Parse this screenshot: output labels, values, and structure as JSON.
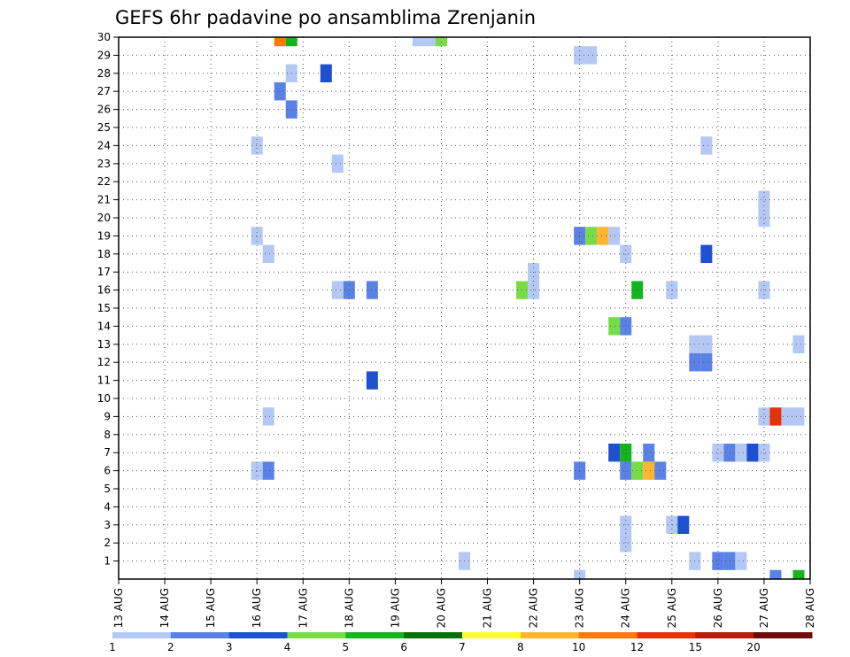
{
  "chart_data": {
    "type": "heatmap",
    "title": "GEFS 6hr padavine po ansamblima Zrenjanin",
    "xlabel": "",
    "ylabel": "",
    "x_ticks": [
      "13 AUG",
      "14 AUG",
      "15 AUG",
      "16 AUG",
      "17 AUG",
      "18 AUG",
      "19 AUG",
      "20 AUG",
      "21 AUG",
      "22 AUG",
      "23 AUG",
      "24 AUG",
      "25 AUG",
      "26 AUG",
      "27 AUG",
      "28 AUG"
    ],
    "y_ticks": [
      1,
      2,
      3,
      4,
      5,
      6,
      7,
      8,
      9,
      10,
      11,
      12,
      13,
      14,
      15,
      16,
      17,
      18,
      19,
      20,
      21,
      22,
      23,
      24,
      25,
      26,
      27,
      28,
      29,
      30
    ],
    "xlim": [
      0,
      60
    ],
    "ylim": [
      0,
      30
    ],
    "grid": true,
    "grid_style": "dotted",
    "colorbar": {
      "position": "bottom",
      "colors": [
        "#b4c8f5",
        "#5a82e6",
        "#1e50d2",
        "#78dc46",
        "#14b41e",
        "#0a6e0a",
        "#ffff28",
        "#ffb432",
        "#ff780a",
        "#e6320a",
        "#b41e0a",
        "#6e0a0a"
      ],
      "labels": [
        "1",
        "2",
        "3",
        "4",
        "5",
        "6",
        "7",
        "8",
        "10",
        "12",
        "15",
        "20"
      ]
    },
    "cells": [
      {
        "t": 14,
        "m": 30,
        "c": 8
      },
      {
        "t": 15,
        "m": 30,
        "c": 4
      },
      {
        "t": 26,
        "m": 30,
        "c": 0
      },
      {
        "t": 27,
        "m": 30,
        "c": 0
      },
      {
        "t": 28,
        "m": 30,
        "c": 3
      },
      {
        "t": 40,
        "m": 29,
        "c": 0
      },
      {
        "t": 41,
        "m": 29,
        "c": 0
      },
      {
        "t": 15,
        "m": 28,
        "c": 0
      },
      {
        "t": 18,
        "m": 28,
        "c": 2
      },
      {
        "t": 14,
        "m": 27,
        "c": 1
      },
      {
        "t": 15,
        "m": 26,
        "c": 1
      },
      {
        "t": 12,
        "m": 24,
        "c": 0
      },
      {
        "t": 51,
        "m": 24,
        "c": 0
      },
      {
        "t": 19,
        "m": 23,
        "c": 0
      },
      {
        "t": 56,
        "m": 21,
        "c": 0
      },
      {
        "t": 56,
        "m": 20,
        "c": 0
      },
      {
        "t": 12,
        "m": 19,
        "c": 0
      },
      {
        "t": 40,
        "m": 19,
        "c": 1
      },
      {
        "t": 41,
        "m": 19,
        "c": 3
      },
      {
        "t": 42,
        "m": 19,
        "c": 7
      },
      {
        "t": 43,
        "m": 19,
        "c": 0
      },
      {
        "t": 13,
        "m": 18,
        "c": 0
      },
      {
        "t": 44,
        "m": 18,
        "c": 0
      },
      {
        "t": 51,
        "m": 18,
        "c": 2
      },
      {
        "t": 36,
        "m": 17,
        "c": 0
      },
      {
        "t": 19,
        "m": 16,
        "c": 0
      },
      {
        "t": 20,
        "m": 16,
        "c": 1
      },
      {
        "t": 22,
        "m": 16,
        "c": 1
      },
      {
        "t": 35,
        "m": 16,
        "c": 3
      },
      {
        "t": 36,
        "m": 16,
        "c": 0
      },
      {
        "t": 45,
        "m": 16,
        "c": 4
      },
      {
        "t": 48,
        "m": 16,
        "c": 0
      },
      {
        "t": 56,
        "m": 16,
        "c": 0
      },
      {
        "t": 43,
        "m": 14,
        "c": 3
      },
      {
        "t": 44,
        "m": 14,
        "c": 1
      },
      {
        "t": 50,
        "m": 13,
        "c": 0
      },
      {
        "t": 51,
        "m": 13,
        "c": 0
      },
      {
        "t": 59,
        "m": 13,
        "c": 0
      },
      {
        "t": 50,
        "m": 12,
        "c": 1
      },
      {
        "t": 51,
        "m": 12,
        "c": 1
      },
      {
        "t": 22,
        "m": 11,
        "c": 2
      },
      {
        "t": 13,
        "m": 9,
        "c": 0
      },
      {
        "t": 56,
        "m": 9,
        "c": 0
      },
      {
        "t": 57,
        "m": 9,
        "c": 9
      },
      {
        "t": 58,
        "m": 9,
        "c": 0
      },
      {
        "t": 59,
        "m": 9,
        "c": 0
      },
      {
        "t": 43,
        "m": 7,
        "c": 2
      },
      {
        "t": 44,
        "m": 7,
        "c": 4
      },
      {
        "t": 46,
        "m": 7,
        "c": 1
      },
      {
        "t": 52,
        "m": 7,
        "c": 0
      },
      {
        "t": 53,
        "m": 7,
        "c": 1
      },
      {
        "t": 54,
        "m": 7,
        "c": 0
      },
      {
        "t": 55,
        "m": 7,
        "c": 2
      },
      {
        "t": 56,
        "m": 7,
        "c": 0
      },
      {
        "t": 12,
        "m": 6,
        "c": 0
      },
      {
        "t": 13,
        "m": 6,
        "c": 1
      },
      {
        "t": 40,
        "m": 6,
        "c": 1
      },
      {
        "t": 44,
        "m": 6,
        "c": 1
      },
      {
        "t": 45,
        "m": 6,
        "c": 3
      },
      {
        "t": 46,
        "m": 6,
        "c": 7
      },
      {
        "t": 47,
        "m": 6,
        "c": 1
      },
      {
        "t": 44,
        "m": 3,
        "c": 0
      },
      {
        "t": 48,
        "m": 3,
        "c": 0
      },
      {
        "t": 49,
        "m": 3,
        "c": 2
      },
      {
        "t": 44,
        "m": 2,
        "c": 0
      },
      {
        "t": 30,
        "m": 1,
        "c": 0
      },
      {
        "t": 50,
        "m": 1,
        "c": 0
      },
      {
        "t": 52,
        "m": 1,
        "c": 1
      },
      {
        "t": 53,
        "m": 1,
        "c": 1
      },
      {
        "t": 54,
        "m": 1,
        "c": 0
      },
      {
        "t": 40,
        "m": 0,
        "c": 0
      },
      {
        "t": 57,
        "m": 0,
        "c": 1
      },
      {
        "t": 59,
        "m": 0,
        "c": 4
      }
    ]
  }
}
